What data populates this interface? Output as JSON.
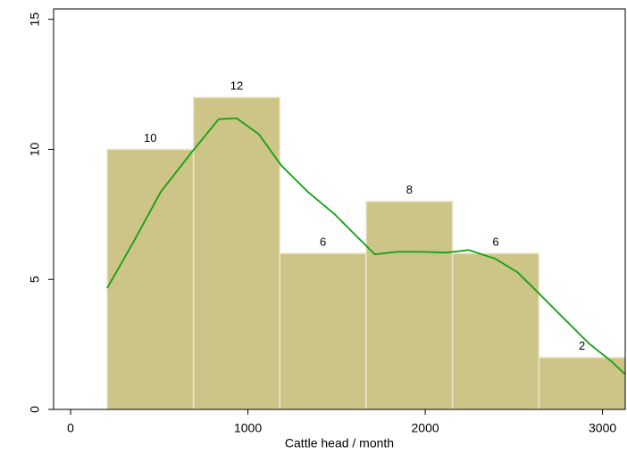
{
  "chart_data": {
    "type": "histogram",
    "x_label": "Cattle head / month",
    "bins": [
      206,
      693,
      1180,
      1667,
      2154,
      2641,
      3128
    ],
    "values": [
      10,
      12,
      6,
      8,
      6,
      2
    ],
    "color": "#cdc487",
    "curve": {
      "x": [
        206,
        357,
        508,
        684,
        835,
        936,
        1062,
        1188,
        1339,
        1490,
        1615,
        1716,
        1842,
        1968,
        2119,
        2245,
        2396,
        2521,
        2622,
        2773,
        2924,
        3050,
        3125
      ],
      "values": [
        4.66,
        6.47,
        8.36,
        9.9,
        11.16,
        11.2,
        10.58,
        9.38,
        8.36,
        7.5,
        6.64,
        5.96,
        6.06,
        6.06,
        6.03,
        6.13,
        5.79,
        5.27,
        4.59,
        3.56,
        2.53,
        1.85,
        1.37
      ],
      "color": "#14a014"
    },
    "xlim": [
      -96,
      3128
    ],
    "ylim": [
      0,
      15.4
    ],
    "xticks": [
      0,
      1000,
      2000,
      3000
    ],
    "yticks": [
      0,
      5,
      10,
      15
    ]
  }
}
